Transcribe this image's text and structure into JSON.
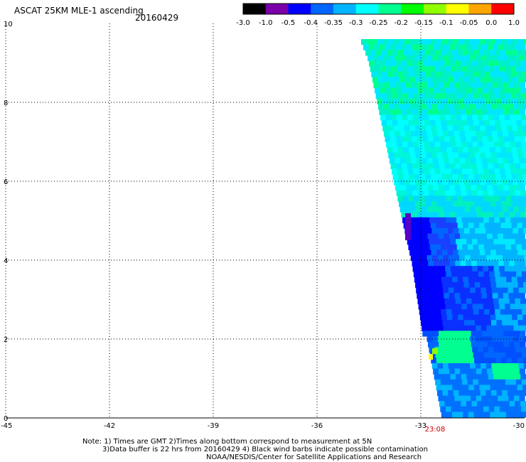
{
  "header": {
    "title": "ASCAT 25KM MLE-1 ascending",
    "date": "20160429"
  },
  "colorbar": {
    "labels": [
      "-3.0",
      "-1.0",
      "-0.5",
      "-0.4",
      "-0.35",
      "-0.3",
      "-0.25",
      "-0.2",
      "-0.15",
      "-0.1",
      "-0.05",
      "0.0",
      "1.0"
    ],
    "colors": [
      "#000000",
      "#7a00a8",
      "#0000ff",
      "#0066ff",
      "#00b4ff",
      "#00ffff",
      "#00ff90",
      "#00ff00",
      "#90ff00",
      "#ffff00",
      "#ffa500",
      "#ff0000"
    ]
  },
  "map": {
    "x_ticks": [
      "-45",
      "-42",
      "-39",
      "-36",
      "-33",
      "-30"
    ],
    "y_ticks": [
      "0",
      "2",
      "4",
      "6",
      "8",
      "10"
    ],
    "lon_range": [
      -45,
      -30
    ],
    "lat_range": [
      0,
      10
    ],
    "time_label": "23:08",
    "time_label_color": "#cc0000"
  },
  "footer": {
    "line1": "Note: 1) Times are GMT 2)Times along bottom correspond to measurement at 5N",
    "line2": "3)Data buffer is 22 hrs from 20160429 4) Black wind barbs indicate possible contamination",
    "line3": "NOAA/NESDIS/Center for Satellite Applications and Research"
  }
}
